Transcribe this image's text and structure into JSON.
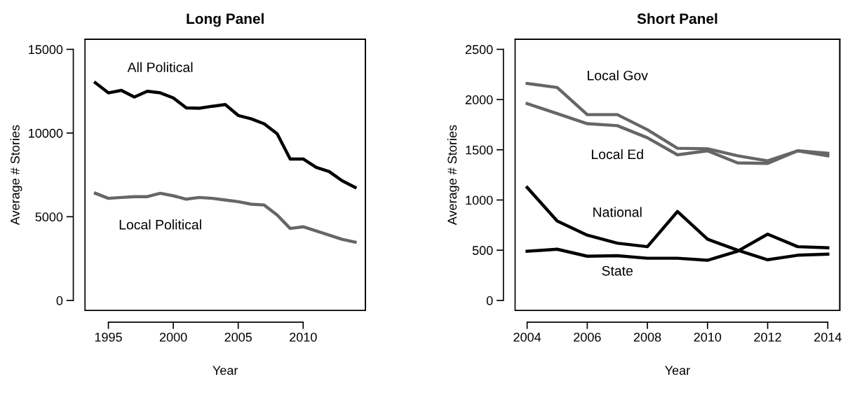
{
  "chart_data": [
    {
      "type": "line",
      "title": "Long Panel",
      "xlabel": "Year",
      "ylabel": "Average # Stories",
      "x": [
        1994,
        1995,
        1996,
        1997,
        1998,
        1999,
        2000,
        2001,
        2002,
        2003,
        2004,
        2005,
        2006,
        2007,
        2008,
        2009,
        2010,
        2011,
        2012,
        2013,
        2014
      ],
      "series": [
        {
          "name": "All Political",
          "color": "#000000",
          "values": [
            13000,
            12400,
            12550,
            12150,
            12500,
            12400,
            12100,
            11500,
            11480,
            11600,
            11700,
            11050,
            10850,
            10550,
            9950,
            8450,
            8450,
            7950,
            7700,
            7150,
            6750
          ]
        },
        {
          "name": "Local Political",
          "color": "#666666",
          "values": [
            6400,
            6100,
            6150,
            6200,
            6200,
            6400,
            6250,
            6050,
            6150,
            6100,
            6000,
            5900,
            5750,
            5700,
            5100,
            4300,
            4400,
            4150,
            3900,
            3650,
            3480
          ]
        }
      ],
      "xlim": [
        1993.2,
        2014.8
      ],
      "ylim": [
        -600,
        15600
      ],
      "xticks": [
        1995,
        2000,
        2005,
        2010
      ],
      "yticks": [
        0,
        5000,
        10000,
        15000
      ],
      "grid": false,
      "marker": "none",
      "line_style": "solid"
    },
    {
      "type": "line",
      "title": "Short Panel",
      "xlabel": "Year",
      "ylabel": "Average # Stories",
      "x": [
        2004,
        2005,
        2006,
        2007,
        2008,
        2009,
        2010,
        2011,
        2012,
        2013,
        2014
      ],
      "series": [
        {
          "name": "Local Gov",
          "color": "#666666",
          "values": [
            2160,
            2120,
            1850,
            1850,
            1700,
            1515,
            1510,
            1440,
            1390,
            1490,
            1440
          ]
        },
        {
          "name": "Local Ed",
          "color": "#666666",
          "values": [
            1960,
            1860,
            1760,
            1740,
            1620,
            1450,
            1490,
            1370,
            1365,
            1490,
            1465
          ]
        },
        {
          "name": "National",
          "color": "#000000",
          "values": [
            1125,
            790,
            650,
            570,
            535,
            885,
            610,
            500,
            405,
            450,
            460
          ]
        },
        {
          "name": "State",
          "color": "#000000",
          "values": [
            490,
            510,
            440,
            445,
            420,
            420,
            400,
            490,
            660,
            535,
            525
          ]
        }
      ],
      "xlim": [
        2003.6,
        2014.4
      ],
      "ylim": [
        -100,
        2600
      ],
      "xticks": [
        2004,
        2006,
        2008,
        2010,
        2012,
        2014
      ],
      "yticks": [
        0,
        500,
        1000,
        1500,
        2000,
        2500
      ],
      "grid": false,
      "marker": "none",
      "line_style": "solid"
    }
  ]
}
